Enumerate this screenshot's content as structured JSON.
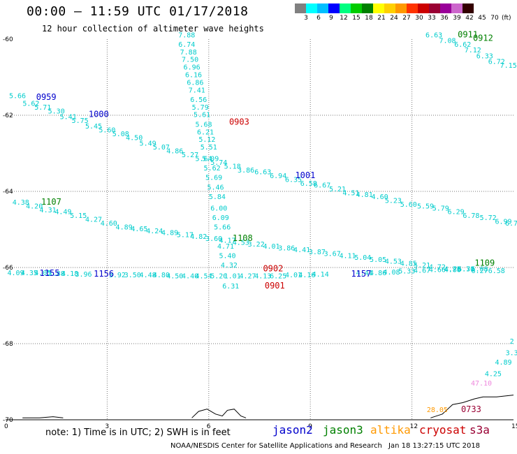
{
  "header": {
    "title": "00:00 – 11:59 UTC 01/17/2018",
    "subtitle": "12 hour collection of altimeter wave heights"
  },
  "colorbar": {
    "colors": [
      "#808080",
      "#00ffff",
      "#00bfff",
      "#0000ff",
      "#00ff80",
      "#00cc00",
      "#008000",
      "#ffff00",
      "#ffd000",
      "#ff9900",
      "#ff3300",
      "#cc0000",
      "#990033",
      "#990099",
      "#cc66cc",
      "#330000"
    ],
    "labels": [
      "3",
      "6",
      "9",
      "12",
      "15",
      "18",
      "21",
      "24",
      "27",
      "30",
      "33",
      "36",
      "39",
      "42",
      "45",
      "70"
    ],
    "unit": "(ft)"
  },
  "note": "note:  1) Time is in UTC;  2) SWH is in feet",
  "legend": [
    {
      "name": "jason2",
      "color": "#0000cc"
    },
    {
      "name": "jason3",
      "color": "#008000"
    },
    {
      "name": "altika",
      "color": "#ff9900"
    },
    {
      "name": "cryosat",
      "color": "#cc0000"
    },
    {
      "name": "s3a",
      "color": "#990033"
    }
  ],
  "footer": {
    "left": "NOAA/NESDIS Center for Satellite Applications and Research",
    "right": "Jan 18 13:27:15 UTC 2018"
  },
  "chart_data": {
    "type": "scatter",
    "xlabel": "",
    "ylabel": "",
    "xlim": [
      0,
      15
    ],
    "ylim": [
      -70,
      -60
    ],
    "xticks": [
      0,
      3,
      6,
      9,
      12,
      15
    ],
    "yticks": [
      -60,
      -62,
      -64,
      -66,
      -68,
      -70
    ],
    "grid": true,
    "labels": [
      {
        "x": 5.35,
        "y": -59.95,
        "text": "7.88",
        "color": "#00cccc"
      },
      {
        "x": 5.35,
        "y": -60.2,
        "text": "6.74",
        "color": "#00cccc"
      },
      {
        "x": 5.4,
        "y": -60.4,
        "text": "7.88",
        "color": "#00cccc"
      },
      {
        "x": 5.45,
        "y": -60.6,
        "text": "7.50",
        "color": "#00cccc"
      },
      {
        "x": 5.5,
        "y": -60.8,
        "text": "6.96",
        "color": "#00cccc"
      },
      {
        "x": 5.55,
        "y": -61.0,
        "text": "6.16",
        "color": "#00cccc"
      },
      {
        "x": 5.6,
        "y": -61.2,
        "text": "6.86",
        "color": "#00cccc"
      },
      {
        "x": 5.65,
        "y": -61.4,
        "text": "7.41",
        "color": "#00cccc"
      },
      {
        "x": 5.7,
        "y": -61.65,
        "text": "6.56",
        "color": "#00cccc"
      },
      {
        "x": 5.75,
        "y": -61.85,
        "text": "5.79",
        "color": "#00cccc"
      },
      {
        "x": 5.8,
        "y": -62.05,
        "text": "5.61",
        "color": "#00cccc"
      },
      {
        "x": 5.85,
        "y": -62.3,
        "text": "5.68",
        "color": "#00cccc"
      },
      {
        "x": 5.9,
        "y": -62.5,
        "text": "6.21",
        "color": "#00cccc"
      },
      {
        "x": 5.95,
        "y": -62.7,
        "text": "5.12",
        "color": "#00cccc"
      },
      {
        "x": 6.0,
        "y": -62.9,
        "text": "5.51",
        "color": "#00cccc"
      },
      {
        "x": 6.05,
        "y": -63.2,
        "text": "5.09",
        "color": "#00cccc"
      },
      {
        "x": 6.1,
        "y": -63.45,
        "text": "5.62",
        "color": "#00cccc"
      },
      {
        "x": 6.15,
        "y": -63.7,
        "text": "5.69",
        "color": "#00cccc"
      },
      {
        "x": 6.2,
        "y": -63.95,
        "text": "5.46",
        "color": "#00cccc"
      },
      {
        "x": 6.25,
        "y": -64.2,
        "text": "5.84",
        "color": "#00cccc"
      },
      {
        "x": 6.3,
        "y": -64.5,
        "text": "6.00",
        "color": "#00cccc"
      },
      {
        "x": 6.35,
        "y": -64.75,
        "text": "6.09",
        "color": "#00cccc"
      },
      {
        "x": 6.4,
        "y": -65.0,
        "text": "5.66",
        "color": "#00cccc"
      },
      {
        "x": 6.5,
        "y": -65.5,
        "text": "4.71",
        "color": "#00cccc"
      },
      {
        "x": 6.55,
        "y": -65.75,
        "text": "5.40",
        "color": "#00cccc"
      },
      {
        "x": 6.6,
        "y": -66.0,
        "text": "4.32",
        "color": "#00cccc"
      },
      {
        "x": 6.65,
        "y": -66.55,
        "text": "6.31",
        "color": "#00cccc"
      },
      {
        "x": 0.35,
        "y": -61.55,
        "text": "5.66",
        "color": "#00cccc"
      },
      {
        "x": 0.75,
        "y": -61.75,
        "text": "5.62",
        "color": "#00cccc"
      },
      {
        "x": 1.1,
        "y": -61.85,
        "text": "5.71",
        "color": "#00cccc"
      },
      {
        "x": 1.5,
        "y": -61.95,
        "text": "5.30",
        "color": "#00cccc"
      },
      {
        "x": 1.85,
        "y": -62.1,
        "text": "5.41",
        "color": "#00cccc"
      },
      {
        "x": 2.2,
        "y": -62.2,
        "text": "5.75",
        "color": "#00cccc"
      },
      {
        "x": 2.6,
        "y": -62.35,
        "text": "5.45",
        "color": "#00cccc"
      },
      {
        "x": 3.0,
        "y": -62.45,
        "text": "5.60",
        "color": "#00cccc"
      },
      {
        "x": 3.4,
        "y": -62.55,
        "text": "5.08",
        "color": "#00cccc"
      },
      {
        "x": 3.8,
        "y": -62.65,
        "text": "4.50",
        "color": "#00cccc"
      },
      {
        "x": 4.2,
        "y": -62.8,
        "text": "5.49",
        "color": "#00cccc"
      },
      {
        "x": 4.6,
        "y": -62.9,
        "text": "5.07",
        "color": "#00cccc"
      },
      {
        "x": 5.0,
        "y": -63.0,
        "text": "4.86",
        "color": "#00cccc"
      },
      {
        "x": 5.45,
        "y": -63.1,
        "text": "5.27",
        "color": "#00cccc"
      },
      {
        "x": 5.85,
        "y": -63.2,
        "text": "5.64",
        "color": "#00cccc"
      },
      {
        "x": 6.3,
        "y": -63.3,
        "text": "5.74",
        "color": "#00cccc"
      },
      {
        "x": 6.7,
        "y": -63.4,
        "text": "5.18",
        "color": "#00cccc"
      },
      {
        "x": 7.1,
        "y": -63.5,
        "text": "3.86",
        "color": "#00cccc"
      },
      {
        "x": 7.6,
        "y": -63.55,
        "text": "6.63",
        "color": "#00cccc"
      },
      {
        "x": 8.05,
        "y": -63.65,
        "text": "6.94",
        "color": "#00cccc"
      },
      {
        "x": 8.5,
        "y": -63.75,
        "text": "6.35",
        "color": "#00cccc"
      },
      {
        "x": 8.95,
        "y": -63.85,
        "text": "6.58",
        "color": "#00cccc"
      },
      {
        "x": 9.35,
        "y": -63.9,
        "text": "6.67",
        "color": "#00cccc"
      },
      {
        "x": 9.8,
        "y": -64.0,
        "text": "5.21",
        "color": "#00cccc"
      },
      {
        "x": 10.2,
        "y": -64.1,
        "text": "4.51",
        "color": "#00cccc"
      },
      {
        "x": 10.6,
        "y": -64.15,
        "text": "4.81",
        "color": "#00cccc"
      },
      {
        "x": 11.05,
        "y": -64.2,
        "text": "4.60",
        "color": "#00cccc"
      },
      {
        "x": 11.45,
        "y": -64.3,
        "text": "5.23",
        "color": "#00cccc"
      },
      {
        "x": 11.9,
        "y": -64.4,
        "text": "5.60",
        "color": "#00cccc"
      },
      {
        "x": 12.4,
        "y": -64.45,
        "text": "5.59",
        "color": "#00cccc"
      },
      {
        "x": 12.85,
        "y": -64.5,
        "text": "5.79",
        "color": "#00cccc"
      },
      {
        "x": 13.3,
        "y": -64.6,
        "text": "6.29",
        "color": "#00cccc"
      },
      {
        "x": 13.75,
        "y": -64.7,
        "text": "6.78",
        "color": "#00cccc"
      },
      {
        "x": 14.25,
        "y": -64.75,
        "text": "5.72",
        "color": "#00cccc"
      },
      {
        "x": 14.7,
        "y": -64.85,
        "text": "6.99",
        "color": "#00cccc"
      },
      {
        "x": 15.0,
        "y": -64.9,
        "text": "6.76",
        "color": "#00cccc"
      },
      {
        "x": 0.45,
        "y": -64.35,
        "text": "4.38",
        "color": "#00cccc"
      },
      {
        "x": 0.85,
        "y": -64.45,
        "text": "4.20",
        "color": "#00cccc"
      },
      {
        "x": 1.25,
        "y": -64.55,
        "text": "4.31",
        "color": "#00cccc"
      },
      {
        "x": 1.7,
        "y": -64.6,
        "text": "4.49",
        "color": "#00cccc"
      },
      {
        "x": 2.15,
        "y": -64.7,
        "text": "5.15",
        "color": "#00cccc"
      },
      {
        "x": 2.6,
        "y": -64.8,
        "text": "4.27",
        "color": "#00cccc"
      },
      {
        "x": 3.05,
        "y": -64.9,
        "text": "4.60",
        "color": "#00cccc"
      },
      {
        "x": 3.5,
        "y": -65.0,
        "text": "4.89",
        "color": "#00cccc"
      },
      {
        "x": 3.95,
        "y": -65.05,
        "text": "4.65",
        "color": "#00cccc"
      },
      {
        "x": 4.4,
        "y": -65.1,
        "text": "4.24",
        "color": "#00cccc"
      },
      {
        "x": 4.85,
        "y": -65.15,
        "text": "4.89",
        "color": "#00cccc"
      },
      {
        "x": 5.3,
        "y": -65.2,
        "text": "5.17",
        "color": "#00cccc"
      },
      {
        "x": 5.7,
        "y": -65.25,
        "text": "4.82",
        "color": "#00cccc"
      },
      {
        "x": 6.15,
        "y": -65.3,
        "text": "3.60",
        "color": "#00cccc"
      },
      {
        "x": 6.55,
        "y": -65.35,
        "text": "4.17",
        "color": "#00cccc"
      },
      {
        "x": 6.95,
        "y": -65.4,
        "text": "4.53",
        "color": "#00cccc"
      },
      {
        "x": 7.4,
        "y": -65.45,
        "text": "3.22",
        "color": "#00cccc"
      },
      {
        "x": 7.85,
        "y": -65.5,
        "text": "4.01",
        "color": "#00cccc"
      },
      {
        "x": 8.3,
        "y": -65.55,
        "text": "3.86",
        "color": "#00cccc"
      },
      {
        "x": 8.75,
        "y": -65.6,
        "text": "4.41",
        "color": "#00cccc"
      },
      {
        "x": 9.2,
        "y": -65.65,
        "text": "3.87",
        "color": "#00cccc"
      },
      {
        "x": 9.65,
        "y": -65.7,
        "text": "3.67",
        "color": "#00cccc"
      },
      {
        "x": 10.1,
        "y": -65.75,
        "text": "4.11",
        "color": "#00cccc"
      },
      {
        "x": 10.55,
        "y": -65.8,
        "text": "5.04",
        "color": "#00cccc"
      },
      {
        "x": 11.0,
        "y": -65.85,
        "text": "5.05",
        "color": "#00cccc"
      },
      {
        "x": 11.45,
        "y": -65.9,
        "text": "4.53",
        "color": "#00cccc"
      },
      {
        "x": 11.9,
        "y": -65.95,
        "text": "4.85",
        "color": "#00cccc"
      },
      {
        "x": 12.3,
        "y": -66.0,
        "text": "5.21",
        "color": "#00cccc"
      },
      {
        "x": 12.75,
        "y": -66.05,
        "text": "4.72",
        "color": "#00cccc"
      },
      {
        "x": 13.2,
        "y": -66.1,
        "text": "4.75",
        "color": "#00cccc"
      },
      {
        "x": 13.6,
        "y": -66.1,
        "text": "6.30",
        "color": "#00cccc"
      },
      {
        "x": 14.0,
        "y": -66.15,
        "text": "6.27",
        "color": "#00cccc"
      },
      {
        "x": 14.5,
        "y": -66.15,
        "text": "6.58",
        "color": "#00cccc"
      },
      {
        "x": 0.3,
        "y": -66.2,
        "text": "4.09",
        "color": "#00cccc"
      },
      {
        "x": 0.7,
        "y": -66.2,
        "text": "4.35",
        "color": "#00cccc"
      },
      {
        "x": 1.1,
        "y": -66.2,
        "text": "4.05",
        "color": "#00cccc"
      },
      {
        "x": 1.5,
        "y": -66.22,
        "text": "3.88",
        "color": "#00cccc"
      },
      {
        "x": 1.9,
        "y": -66.22,
        "text": "4.18",
        "color": "#00cccc"
      },
      {
        "x": 2.3,
        "y": -66.24,
        "text": "3.96",
        "color": "#00cccc"
      },
      {
        "x": 3.3,
        "y": -66.26,
        "text": "3.92",
        "color": "#00cccc"
      },
      {
        "x": 3.75,
        "y": -66.26,
        "text": "3.50",
        "color": "#00cccc"
      },
      {
        "x": 4.2,
        "y": -66.26,
        "text": "4.48",
        "color": "#00cccc"
      },
      {
        "x": 4.6,
        "y": -66.26,
        "text": "4.80",
        "color": "#00cccc"
      },
      {
        "x": 5.0,
        "y": -66.28,
        "text": "4.50",
        "color": "#00cccc"
      },
      {
        "x": 5.45,
        "y": -66.28,
        "text": "4.40",
        "color": "#00cccc"
      },
      {
        "x": 5.85,
        "y": -66.28,
        "text": "4.54",
        "color": "#00cccc"
      },
      {
        "x": 6.3,
        "y": -66.28,
        "text": "5.20",
        "color": "#00cccc"
      },
      {
        "x": 6.7,
        "y": -66.28,
        "text": "1.01",
        "color": "#00cccc"
      },
      {
        "x": 7.15,
        "y": -66.28,
        "text": "4.27",
        "color": "#00cccc"
      },
      {
        "x": 7.6,
        "y": -66.28,
        "text": "4.13",
        "color": "#00cccc"
      },
      {
        "x": 8.05,
        "y": -66.28,
        "text": "6.25",
        "color": "#00cccc"
      },
      {
        "x": 8.5,
        "y": -66.26,
        "text": "4.01",
        "color": "#00cccc"
      },
      {
        "x": 8.9,
        "y": -66.26,
        "text": "4.16",
        "color": "#00cccc"
      },
      {
        "x": 9.3,
        "y": -66.24,
        "text": "4.14",
        "color": "#00cccc"
      },
      {
        "x": 10.6,
        "y": -66.2,
        "text": "4.41",
        "color": "#00cccc"
      },
      {
        "x": 11.0,
        "y": -66.2,
        "text": "4.86",
        "color": "#00cccc"
      },
      {
        "x": 11.4,
        "y": -66.18,
        "text": "4.08",
        "color": "#00cccc"
      },
      {
        "x": 11.85,
        "y": -66.16,
        "text": "5.33",
        "color": "#00cccc"
      },
      {
        "x": 12.3,
        "y": -66.14,
        "text": "4.67",
        "color": "#00cccc"
      },
      {
        "x": 12.75,
        "y": -66.12,
        "text": "4.66",
        "color": "#00cccc"
      },
      {
        "x": 13.2,
        "y": -66.12,
        "text": "4.86",
        "color": "#00cccc"
      },
      {
        "x": 13.6,
        "y": -66.1,
        "text": "5.71",
        "color": "#00cccc"
      },
      {
        "x": 14.0,
        "y": -66.1,
        "text": "5.08",
        "color": "#00cccc"
      },
      {
        "x": 12.65,
        "y": -59.95,
        "text": "6.63",
        "color": "#00cccc"
      },
      {
        "x": 13.05,
        "y": -60.1,
        "text": "7.08",
        "color": "#00cccc"
      },
      {
        "x": 13.5,
        "y": -60.2,
        "text": "6.62",
        "color": "#00cccc"
      },
      {
        "x": 13.8,
        "y": -60.35,
        "text": "7.12",
        "color": "#00cccc"
      },
      {
        "x": 14.15,
        "y": -60.5,
        "text": "6.33",
        "color": "#00cccc"
      },
      {
        "x": 14.5,
        "y": -60.65,
        "text": "6.72",
        "color": "#00cccc"
      },
      {
        "x": 14.85,
        "y": -60.75,
        "text": "7.15",
        "color": "#00cccc"
      },
      {
        "x": 14.95,
        "y": -68.0,
        "text": "2",
        "color": "#00cccc"
      },
      {
        "x": 14.95,
        "y": -68.3,
        "text": "3.3",
        "color": "#00cccc"
      },
      {
        "x": 14.7,
        "y": -68.55,
        "text": "4.89",
        "color": "#00cccc"
      },
      {
        "x": 14.4,
        "y": -68.85,
        "text": "4.25",
        "color": "#00cccc"
      },
      {
        "x": 14.05,
        "y": -69.1,
        "text": "47.10",
        "color": "#ee88dd"
      },
      {
        "x": 12.75,
        "y": -69.8,
        "text": "28.05",
        "color": "#ff9900"
      },
      {
        "x": 1.2,
        "y": -61.6,
        "text": "0959",
        "color": "#0000cc",
        "bold": true
      },
      {
        "x": 2.75,
        "y": -62.05,
        "text": "1000",
        "color": "#0000cc",
        "bold": true
      },
      {
        "x": 6.9,
        "y": -62.25,
        "text": "0903",
        "color": "#cc0000",
        "bold": true
      },
      {
        "x": 8.85,
        "y": -63.65,
        "text": "1001",
        "color": "#0000cc",
        "bold": true
      },
      {
        "x": 1.35,
        "y": -64.35,
        "text": "1107",
        "color": "#008000",
        "bold": true
      },
      {
        "x": 7.0,
        "y": -65.3,
        "text": "1108",
        "color": "#008000",
        "bold": true
      },
      {
        "x": 7.9,
        "y": -66.1,
        "text": "0902",
        "color": "#cc0000",
        "bold": true
      },
      {
        "x": 7.95,
        "y": -66.55,
        "text": "0901",
        "color": "#cc0000",
        "bold": true
      },
      {
        "x": 1.3,
        "y": -66.22,
        "text": "1155",
        "color": "#0000cc",
        "bold": true
      },
      {
        "x": 2.9,
        "y": -66.24,
        "text": "1156",
        "color": "#0000cc",
        "bold": true
      },
      {
        "x": 10.5,
        "y": -66.24,
        "text": "1157",
        "color": "#0000cc",
        "bold": true
      },
      {
        "x": 14.15,
        "y": -65.95,
        "text": "1109",
        "color": "#008000",
        "bold": true
      },
      {
        "x": 13.65,
        "y": -59.95,
        "text": "0911",
        "color": "#008000",
        "bold": true
      },
      {
        "x": 14.1,
        "y": -60.05,
        "text": "0912",
        "color": "#008000",
        "bold": true
      },
      {
        "x": 13.75,
        "y": -69.8,
        "text": "0733",
        "color": "#990033",
        "bold": true
      }
    ],
    "coastline": [
      [
        0.5,
        -69.95
      ],
      [
        1.0,
        -69.95
      ],
      [
        1.4,
        -69.92
      ],
      [
        1.7,
        -69.95
      ],
      [
        5.5,
        -69.95
      ],
      [
        5.7,
        -69.78
      ],
      [
        5.95,
        -69.72
      ],
      [
        6.2,
        -69.85
      ],
      [
        6.4,
        -69.9
      ],
      [
        6.55,
        -69.75
      ],
      [
        6.75,
        -69.72
      ],
      [
        6.95,
        -69.9
      ],
      [
        7.1,
        -69.95
      ],
      [
        12.55,
        -69.95
      ],
      [
        12.9,
        -69.85
      ],
      [
        13.2,
        -69.6
      ],
      [
        13.5,
        -69.55
      ],
      [
        13.85,
        -69.45
      ],
      [
        14.1,
        -69.4
      ],
      [
        14.5,
        -69.4
      ],
      [
        15.0,
        -69.35
      ]
    ]
  }
}
